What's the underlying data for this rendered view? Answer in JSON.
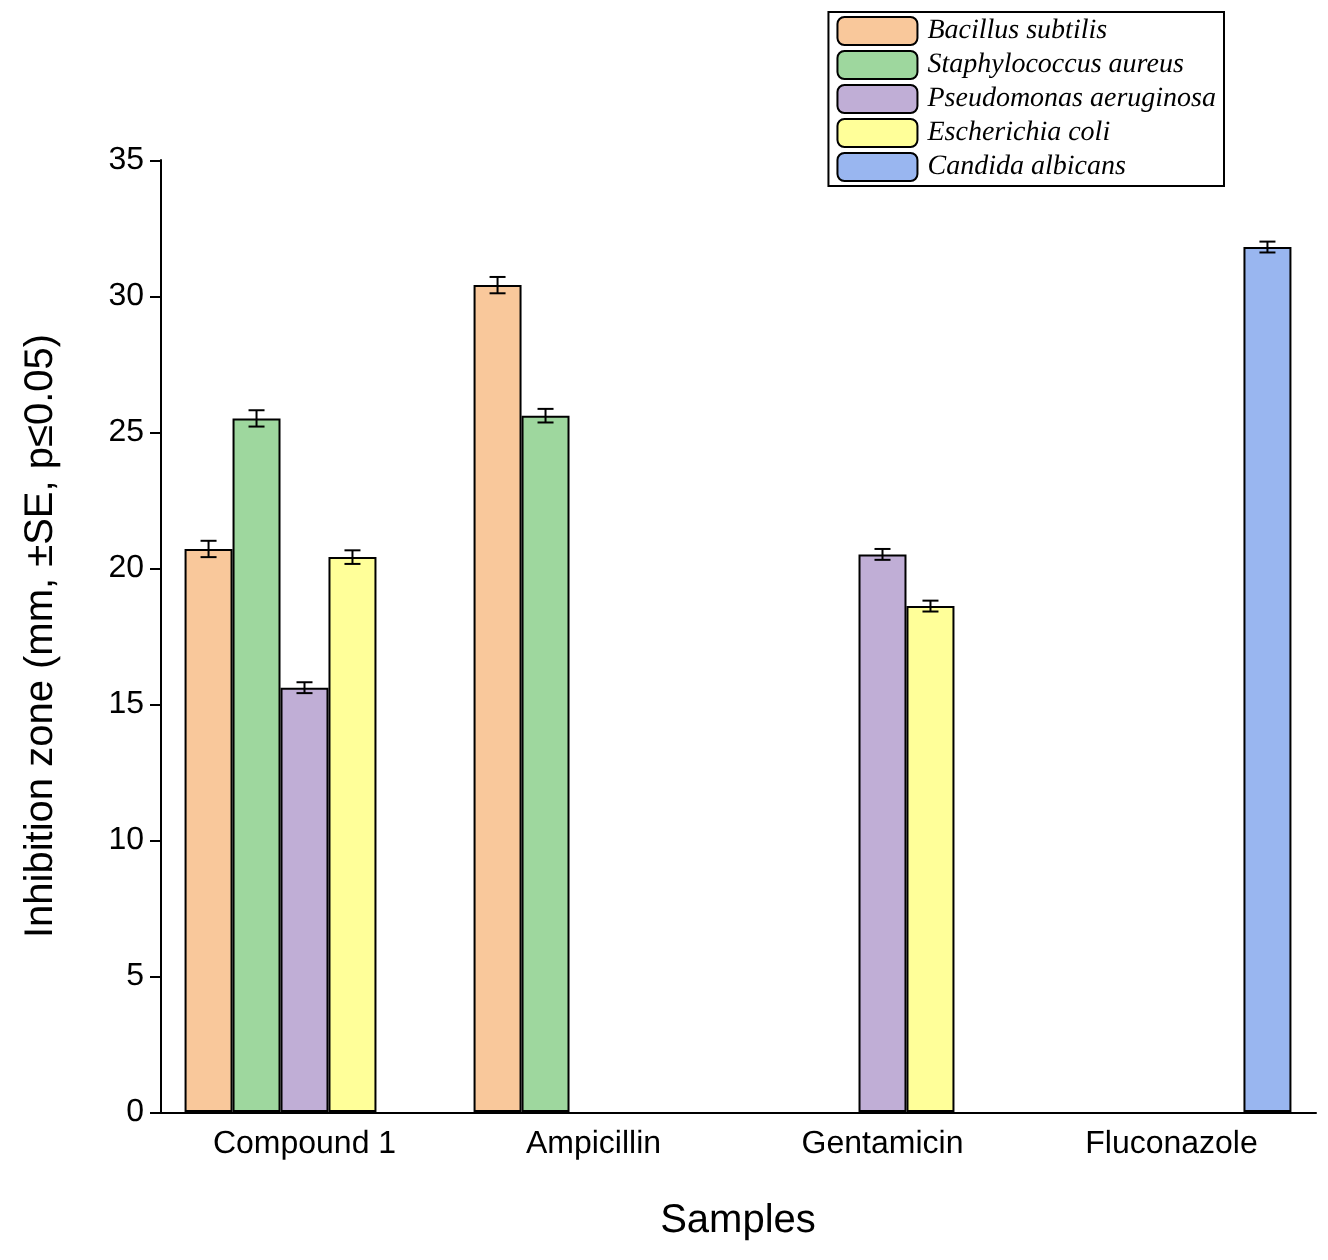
{
  "chart_data": {
    "type": "bar",
    "xlabel": "Samples",
    "ylabel": "Inhibition zone (mm, ±SE, p≤0.05)",
    "categories": [
      "Compound 1",
      "Ampicillin",
      "Gentamicin",
      "Fluconazole"
    ],
    "series": [
      {
        "name": "Bacillus subtilis",
        "color": "#f9c89b",
        "values": [
          20.7,
          30.4,
          null,
          null
        ],
        "errors": [
          0.3,
          0.3,
          null,
          null
        ]
      },
      {
        "name": "Staphylococcus aureus",
        "color": "#9ed79e",
        "values": [
          25.5,
          25.6,
          null,
          null
        ],
        "errors": [
          0.3,
          0.25,
          null,
          null
        ]
      },
      {
        "name": "Pseudomonas aeruginosa",
        "color": "#c0aed6",
        "values": [
          15.6,
          null,
          20.5,
          null
        ],
        "errors": [
          0.2,
          null,
          0.2,
          null
        ]
      },
      {
        "name": "Escherichia coli",
        "color": "#ffff99",
        "values": [
          20.4,
          null,
          18.6,
          null
        ],
        "errors": [
          0.25,
          null,
          0.2,
          null
        ]
      },
      {
        "name": "Candida albicans",
        "color": "#99b6f0",
        "values": [
          null,
          null,
          null,
          31.8
        ],
        "errors": [
          null,
          null,
          null,
          0.2
        ]
      }
    ],
    "ylim": [
      0,
      35
    ],
    "yticks": [
      0,
      5,
      10,
      15,
      20,
      25,
      30,
      35
    ],
    "grid": false,
    "legend": "top right"
  }
}
